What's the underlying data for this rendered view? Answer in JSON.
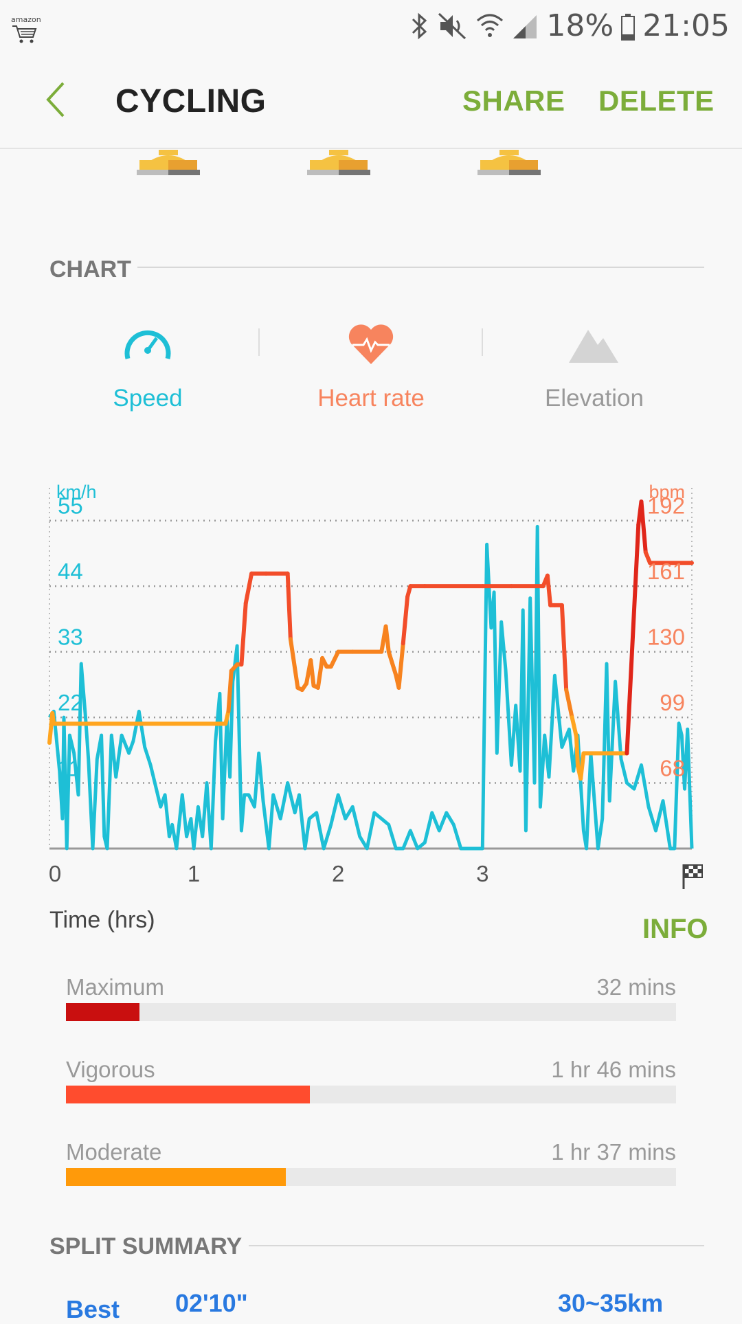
{
  "status_bar": {
    "carrier_logo": "amazon",
    "battery": "18%",
    "time": "21:05",
    "icons": [
      "bluetooth-icon",
      "mute-icon",
      "wifi-icon",
      "signal-icon",
      "battery-icon"
    ]
  },
  "app_bar": {
    "title": "CYCLING",
    "share_label": "SHARE",
    "delete_label": "DELETE"
  },
  "chart_section": {
    "header": "CHART",
    "tabs": [
      {
        "label": "Speed",
        "color": "#1ebfd6",
        "icon": "speedometer-icon"
      },
      {
        "label": "Heart rate",
        "color": "#f7845e",
        "icon": "heart-rate-icon"
      },
      {
        "label": "Elevation",
        "color": "#999999",
        "icon": "mountain-icon"
      }
    ]
  },
  "chart_data": {
    "type": "line",
    "xlabel": "Time (hrs)",
    "x_ticks": [
      "0",
      "1",
      "2",
      "3"
    ],
    "xlim": [
      0,
      4.45
    ],
    "y_left": {
      "unit": "km/h",
      "ticks": [
        "11",
        "22",
        "33",
        "44",
        "55"
      ],
      "ylim": [
        0,
        60.5
      ],
      "color": "#1ebfd6"
    },
    "y_right": {
      "unit": "bpm",
      "ticks": [
        "68",
        "99",
        "130",
        "161",
        "192"
      ],
      "color": "#f7845e"
    },
    "series": [
      {
        "name": "Speed",
        "color": "#1ebfd6",
        "points": [
          [
            0.0,
            22
          ],
          [
            0.03,
            23
          ],
          [
            0.07,
            13
          ],
          [
            0.09,
            5
          ],
          [
            0.1,
            22
          ],
          [
            0.12,
            0
          ],
          [
            0.14,
            19
          ],
          [
            0.17,
            16
          ],
          [
            0.2,
            9
          ],
          [
            0.22,
            31
          ],
          [
            0.25,
            22
          ],
          [
            0.27,
            15
          ],
          [
            0.3,
            0
          ],
          [
            0.33,
            15
          ],
          [
            0.36,
            19
          ],
          [
            0.38,
            2
          ],
          [
            0.4,
            0
          ],
          [
            0.43,
            19
          ],
          [
            0.46,
            12
          ],
          [
            0.5,
            19
          ],
          [
            0.55,
            16
          ],
          [
            0.58,
            18
          ],
          [
            0.62,
            23
          ],
          [
            0.66,
            17
          ],
          [
            0.7,
            14
          ],
          [
            0.73,
            11
          ],
          [
            0.77,
            7
          ],
          [
            0.8,
            9
          ],
          [
            0.83,
            2
          ],
          [
            0.85,
            4
          ],
          [
            0.88,
            0
          ],
          [
            0.92,
            9
          ],
          [
            0.95,
            2
          ],
          [
            0.98,
            5
          ],
          [
            1.0,
            0
          ],
          [
            1.03,
            7
          ],
          [
            1.06,
            2
          ],
          [
            1.09,
            11
          ],
          [
            1.12,
            0
          ],
          [
            1.15,
            18
          ],
          [
            1.18,
            26
          ],
          [
            1.2,
            5
          ],
          [
            1.23,
            22
          ],
          [
            1.25,
            12
          ],
          [
            1.27,
            28
          ],
          [
            1.3,
            34
          ],
          [
            1.33,
            3
          ],
          [
            1.35,
            9
          ],
          [
            1.38,
            9
          ],
          [
            1.42,
            7
          ],
          [
            1.45,
            16
          ],
          [
            1.48,
            8
          ],
          [
            1.52,
            0
          ],
          [
            1.55,
            9
          ],
          [
            1.6,
            5
          ],
          [
            1.65,
            11
          ],
          [
            1.7,
            6
          ],
          [
            1.73,
            9
          ],
          [
            1.77,
            0
          ],
          [
            1.8,
            5
          ],
          [
            1.85,
            6
          ],
          [
            1.9,
            0
          ],
          [
            1.95,
            4
          ],
          [
            2.0,
            9
          ],
          [
            2.05,
            5
          ],
          [
            2.1,
            7
          ],
          [
            2.15,
            2
          ],
          [
            2.2,
            0
          ],
          [
            2.25,
            6
          ],
          [
            2.3,
            5
          ],
          [
            2.35,
            4
          ],
          [
            2.4,
            0
          ],
          [
            2.45,
            0
          ],
          [
            2.5,
            3
          ],
          [
            2.55,
            0
          ],
          [
            2.6,
            1
          ],
          [
            2.65,
            6
          ],
          [
            2.7,
            3
          ],
          [
            2.75,
            6
          ],
          [
            2.8,
            4
          ],
          [
            2.85,
            0
          ],
          [
            2.9,
            0
          ],
          [
            3.0,
            0
          ],
          [
            3.03,
            51
          ],
          [
            3.06,
            37
          ],
          [
            3.08,
            43
          ],
          [
            3.1,
            16
          ],
          [
            3.13,
            38
          ],
          [
            3.16,
            30
          ],
          [
            3.2,
            14
          ],
          [
            3.23,
            24
          ],
          [
            3.26,
            13
          ],
          [
            3.28,
            40
          ],
          [
            3.3,
            3
          ],
          [
            3.33,
            42
          ],
          [
            3.36,
            11
          ],
          [
            3.38,
            54
          ],
          [
            3.4,
            7
          ],
          [
            3.43,
            19
          ],
          [
            3.46,
            12
          ],
          [
            3.5,
            29
          ],
          [
            3.55,
            17
          ],
          [
            3.6,
            20
          ],
          [
            3.63,
            13
          ],
          [
            3.66,
            19
          ],
          [
            3.7,
            3
          ],
          [
            3.72,
            0
          ],
          [
            3.75,
            16
          ],
          [
            3.8,
            0
          ],
          [
            3.83,
            5
          ],
          [
            3.86,
            31
          ],
          [
            3.88,
            8
          ],
          [
            3.92,
            28
          ],
          [
            3.96,
            15
          ],
          [
            4.0,
            11
          ],
          [
            4.05,
            10
          ],
          [
            4.1,
            14
          ],
          [
            4.15,
            7
          ],
          [
            4.2,
            3
          ],
          [
            4.25,
            8
          ],
          [
            4.3,
            0
          ],
          [
            4.33,
            0
          ],
          [
            4.36,
            21
          ],
          [
            4.38,
            19
          ],
          [
            4.4,
            10
          ],
          [
            4.42,
            20
          ],
          [
            4.45,
            0
          ]
        ]
      },
      {
        "name": "Heart rate",
        "color": "#f26b34",
        "points": [
          [
            0.0,
            87
          ],
          [
            0.02,
            101
          ],
          [
            0.03,
            96
          ],
          [
            0.06,
            96
          ],
          [
            1.22,
            96
          ],
          [
            1.24,
            102
          ],
          [
            1.26,
            121
          ],
          [
            1.3,
            124
          ],
          [
            1.33,
            124
          ],
          [
            1.36,
            153
          ],
          [
            1.4,
            167
          ],
          [
            1.5,
            167
          ],
          [
            1.65,
            167
          ],
          [
            1.67,
            136
          ],
          [
            1.72,
            113
          ],
          [
            1.75,
            112
          ],
          [
            1.78,
            115
          ],
          [
            1.81,
            126
          ],
          [
            1.83,
            114
          ],
          [
            1.86,
            113
          ],
          [
            1.89,
            127
          ],
          [
            1.92,
            123
          ],
          [
            1.95,
            123
          ],
          [
            2.0,
            130
          ],
          [
            2.1,
            130
          ],
          [
            2.3,
            130
          ],
          [
            2.33,
            142
          ],
          [
            2.35,
            130
          ],
          [
            2.4,
            119
          ],
          [
            2.42,
            113
          ],
          [
            2.45,
            134
          ],
          [
            2.48,
            156
          ],
          [
            2.5,
            161
          ],
          [
            2.6,
            161
          ],
          [
            3.0,
            161
          ],
          [
            3.2,
            161
          ],
          [
            3.42,
            161
          ],
          [
            3.45,
            166
          ],
          [
            3.47,
            152
          ],
          [
            3.5,
            152
          ],
          [
            3.55,
            152
          ],
          [
            3.58,
            112
          ],
          [
            3.62,
            99
          ],
          [
            3.65,
            90
          ],
          [
            3.66,
            76
          ],
          [
            3.68,
            70
          ],
          [
            3.7,
            82
          ],
          [
            3.9,
            82
          ],
          [
            3.96,
            82
          ],
          [
            4.0,
            82
          ],
          [
            4.08,
            190
          ],
          [
            4.1,
            201
          ],
          [
            4.13,
            177
          ],
          [
            4.16,
            172
          ],
          [
            4.45,
            172
          ]
        ]
      }
    ],
    "grid": true
  },
  "info_label": "INFO",
  "zones": [
    {
      "label": "Maximum",
      "time": "32 mins",
      "fraction": 0.12,
      "color": "#c90f0f"
    },
    {
      "label": "Vigorous",
      "time": "1 hr 46 mins",
      "fraction": 0.4,
      "color": "#ff4c2e"
    },
    {
      "label": "Moderate",
      "time": "1 hr 37 mins",
      "fraction": 0.36,
      "color": "#ff9a0a"
    }
  ],
  "split_summary": {
    "header": "SPLIT SUMMARY",
    "best_label": "Best",
    "best_time": "02'10\"",
    "best_range": "30~35km"
  }
}
